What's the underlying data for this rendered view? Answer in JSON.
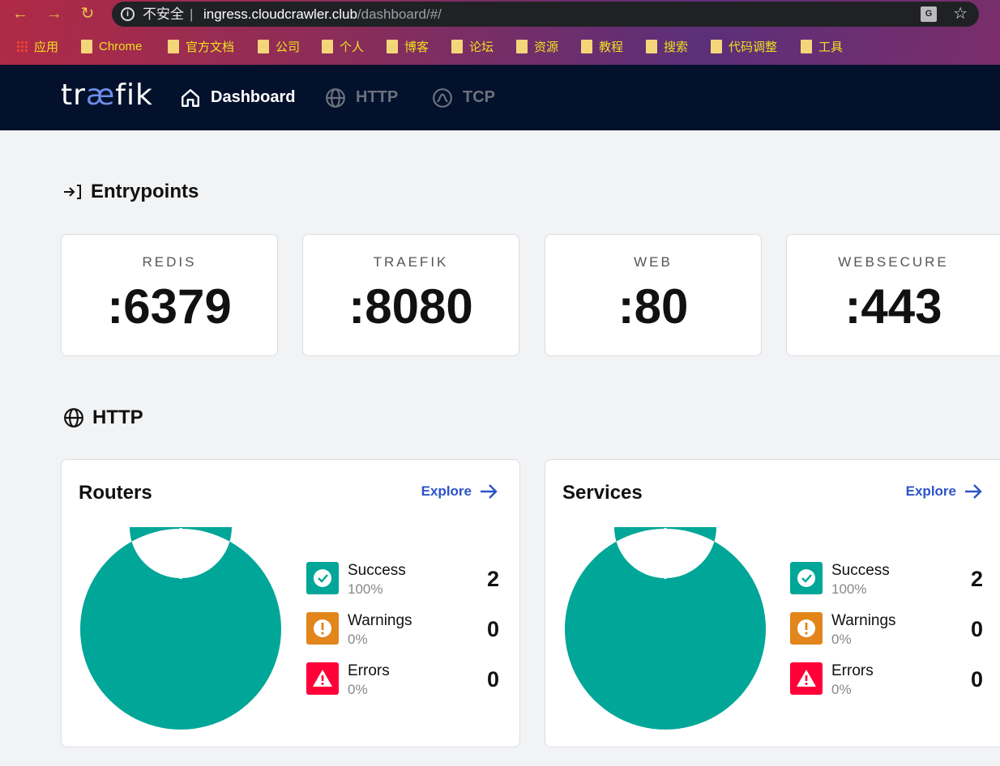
{
  "browser": {
    "security_label": "不安全",
    "separator": "|",
    "url_host": "ingress.cloudcrawler.club",
    "url_path": "/dashboard/#/",
    "bookmarks": [
      "应用",
      "Chrome",
      "官方文档",
      "公司",
      "个人",
      "博客",
      "论坛",
      "资源",
      "教程",
      "搜索",
      "代码调整",
      "工具"
    ]
  },
  "nav": {
    "logo_pre": "tr",
    "logo_ae": "æ",
    "logo_post": "fik",
    "items": [
      {
        "label": "Dashboard",
        "icon": "home-icon",
        "active": true
      },
      {
        "label": "HTTP",
        "icon": "globe-icon",
        "active": false
      },
      {
        "label": "TCP",
        "icon": "tcp-icon",
        "active": false
      }
    ]
  },
  "entrypoints": {
    "title": "Entrypoints",
    "items": [
      {
        "name": "REDIS",
        "port": ":6379"
      },
      {
        "name": "TRAEFIK",
        "port": ":8080"
      },
      {
        "name": "WEB",
        "port": ":80"
      },
      {
        "name": "WEBSECURE",
        "port": ":443"
      }
    ]
  },
  "http": {
    "title": "HTTP",
    "panels": [
      {
        "title": "Routers",
        "explore": "Explore",
        "stats": [
          {
            "label": "Success",
            "percent": "100%",
            "count": "2",
            "share": 1.0
          },
          {
            "label": "Warnings",
            "percent": "0%",
            "count": "0",
            "share": 0
          },
          {
            "label": "Errors",
            "percent": "0%",
            "count": "0",
            "share": 0
          }
        ]
      },
      {
        "title": "Services",
        "explore": "Explore",
        "stats": [
          {
            "label": "Success",
            "percent": "100%",
            "count": "2",
            "share": 1.0
          },
          {
            "label": "Warnings",
            "percent": "0%",
            "count": "0",
            "share": 0
          },
          {
            "label": "Errors",
            "percent": "0%",
            "count": "0",
            "share": 0
          }
        ]
      }
    ]
  },
  "colors": {
    "success": "#00a697",
    "warning": "#e2851b",
    "error": "#ff0039",
    "accent": "#2d53c7",
    "nav_bg": "#03112c"
  }
}
